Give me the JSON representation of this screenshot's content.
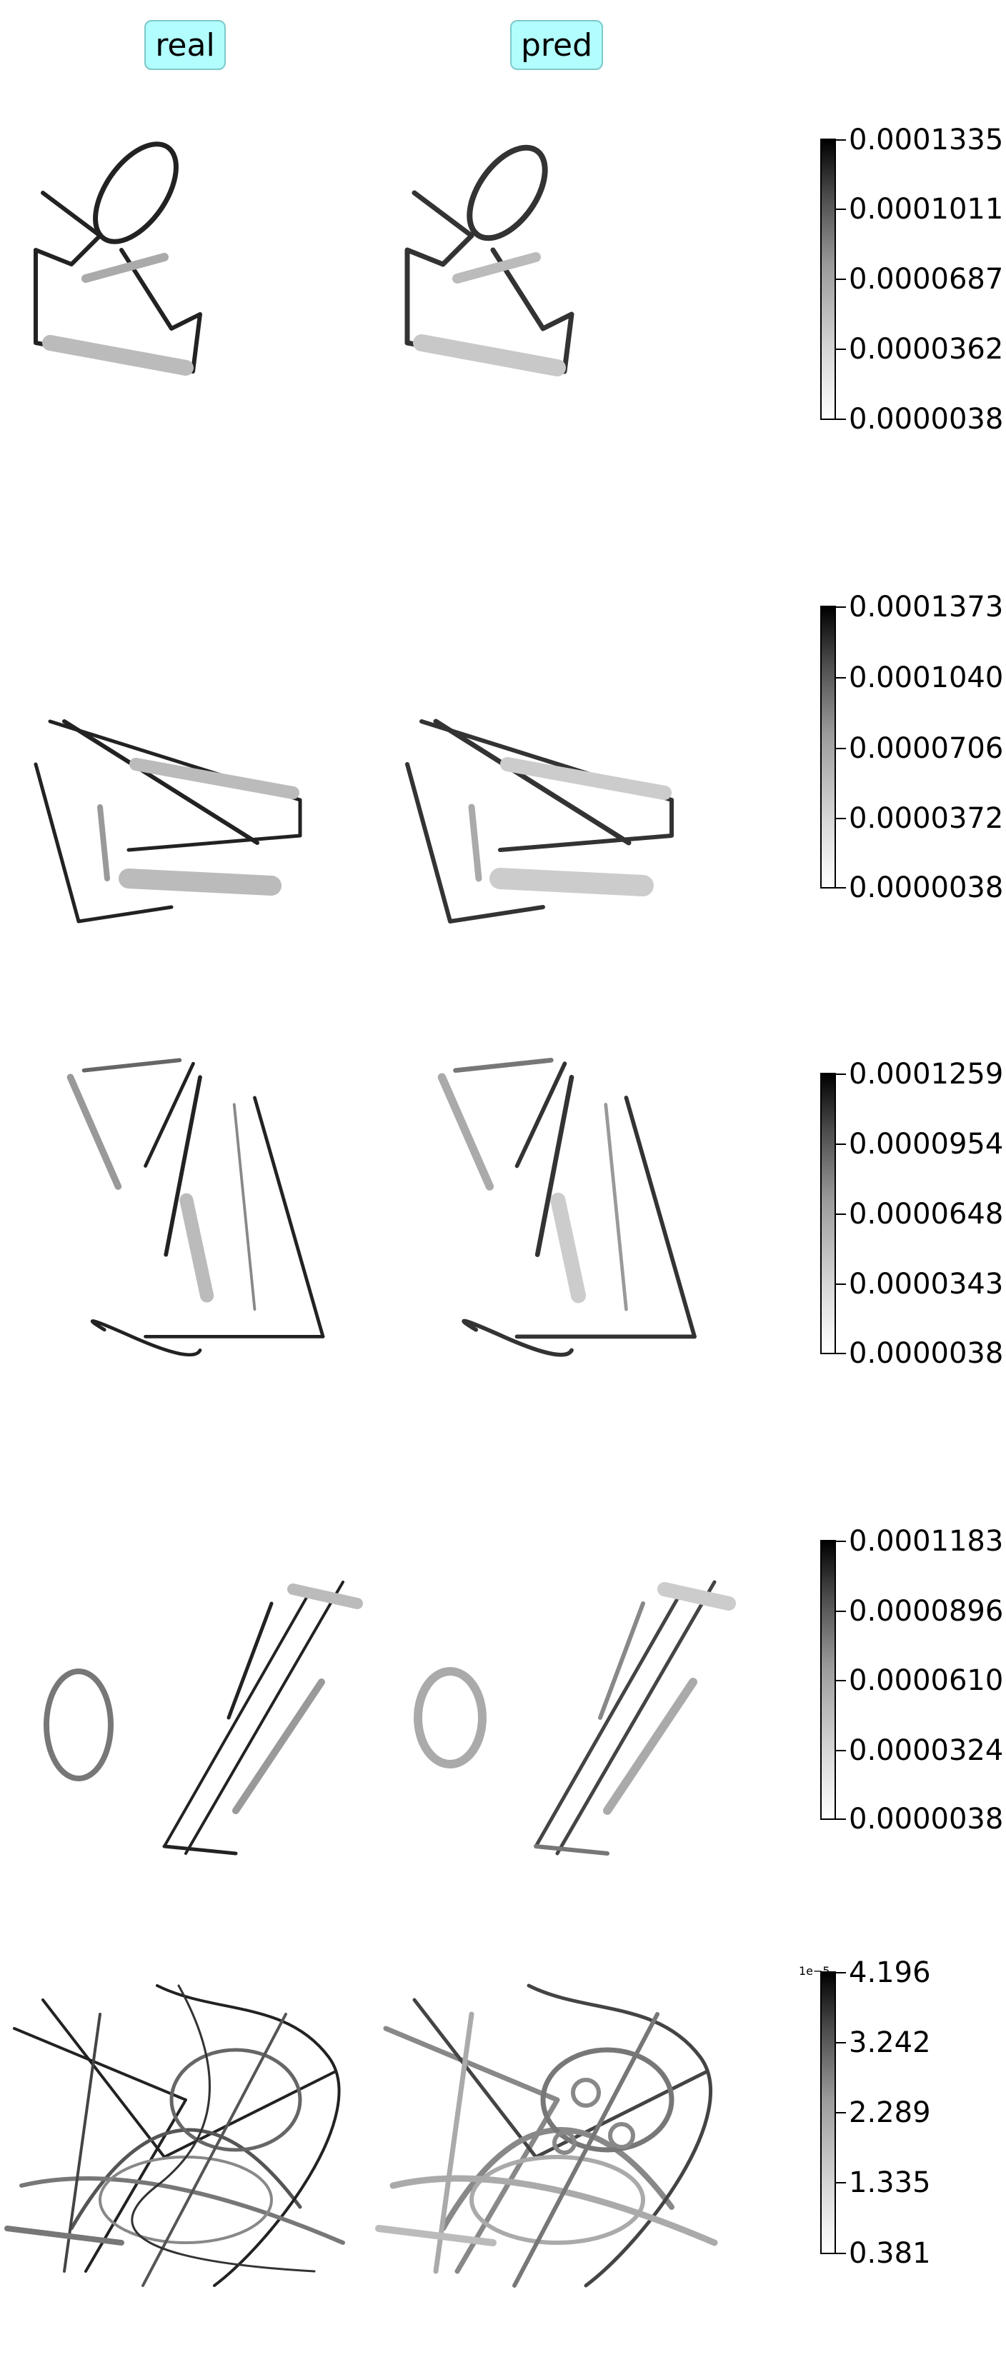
{
  "columns": {
    "real_label": "real",
    "pred_label": "pred"
  },
  "rows": [
    {
      "ticks": [
        "0.0001335",
        "0.0001011",
        "0.0000687",
        "0.0000362",
        "0.0000038"
      ],
      "multiplier": ""
    },
    {
      "ticks": [
        "0.0001373",
        "0.0001040",
        "0.0000706",
        "0.0000372",
        "0.0000038"
      ],
      "multiplier": ""
    },
    {
      "ticks": [
        "0.0001259",
        "0.0000954",
        "0.0000648",
        "0.0000343",
        "0.0000038"
      ],
      "multiplier": ""
    },
    {
      "ticks": [
        "0.0001183",
        "0.0000896",
        "0.0000610",
        "0.0000324",
        "0.0000038"
      ],
      "multiplier": ""
    },
    {
      "ticks": [
        "4.196",
        "3.242",
        "2.289",
        "1.335",
        "0.381"
      ],
      "multiplier": "1e−5"
    }
  ],
  "colormap": {
    "low": "#ffffff",
    "high": "#000000"
  }
}
